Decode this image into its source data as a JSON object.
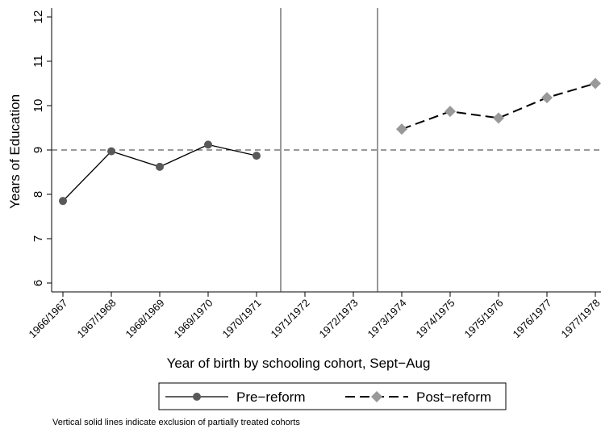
{
  "chart_data": {
    "type": "line",
    "categories": [
      "1966/1967",
      "1967/1968",
      "1968/1969",
      "1969/1970",
      "1970/1971",
      "1971/1972",
      "1972/1973",
      "1973/1974",
      "1974/1975",
      "1975/1976",
      "1976/1977",
      "1977/1978"
    ],
    "series": [
      {
        "name": "Pre−reform",
        "color": "#595959",
        "marker": "circle",
        "dash": "solid",
        "values": [
          7.85,
          8.97,
          8.62,
          9.12,
          8.87,
          null,
          null,
          null,
          null,
          null,
          null,
          null
        ]
      },
      {
        "name": "Post−reform",
        "color": "#999999",
        "marker": "diamond",
        "dash": "dashed",
        "values": [
          null,
          null,
          null,
          null,
          null,
          null,
          null,
          9.47,
          9.87,
          9.72,
          10.18,
          10.5
        ]
      }
    ],
    "ylim": [
      5.8,
      12.2
    ],
    "yticks": [
      6,
      7,
      8,
      9,
      10,
      11,
      12
    ],
    "hline": 9,
    "vlines": [
      4.5,
      6.5
    ],
    "xlabel": "Year of birth by schooling cohort, Sept−Aug",
    "ylabel": "Years of Education",
    "note": "Vertical solid lines indicate exclusion of partially treated cohorts"
  }
}
